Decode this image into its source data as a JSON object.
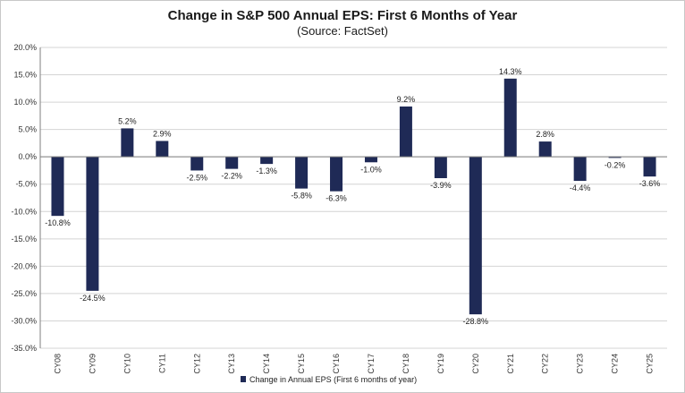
{
  "chart_data": {
    "type": "bar",
    "title": "Change in S&P 500 Annual EPS: First 6 Months of Year",
    "subtitle": "(Source: FactSet)",
    "categories": [
      "CY08",
      "CY09",
      "CY10",
      "CY11",
      "CY12",
      "CY13",
      "CY14",
      "CY15",
      "CY16",
      "CY17",
      "CY18",
      "CY19",
      "CY20",
      "CY21",
      "CY22",
      "CY23",
      "CY24",
      "CY25"
    ],
    "series": [
      {
        "name": "Change in Annual EPS (First 6 months of year)",
        "values": [
          -10.8,
          -24.5,
          5.2,
          2.9,
          -2.5,
          -2.2,
          -1.3,
          -5.8,
          -6.3,
          -1.0,
          9.2,
          -3.9,
          -28.8,
          14.3,
          2.8,
          -4.4,
          -0.2,
          -3.6
        ],
        "labels": [
          "-10.8%",
          "-24.5%",
          "5.2%",
          "2.9%",
          "-2.5%",
          "-2.2%",
          "-1.3%",
          "-5.8%",
          "-6.3%",
          "-1.0%",
          "9.2%",
          "-3.9%",
          "-28.8%",
          "14.3%",
          "2.8%",
          "-4.4%",
          "-0.2%",
          "-3.6%"
        ]
      }
    ],
    "yticks": [
      20,
      15,
      10,
      5,
      0,
      -5,
      -10,
      -15,
      -20,
      -25,
      -30,
      -35
    ],
    "ytick_labels": [
      "20.0%",
      "15.0%",
      "10.0%",
      "5.0%",
      "0.0%",
      "-5.0%",
      "-10.0%",
      "-15.0%",
      "-20.0%",
      "-25.0%",
      "-30.0%",
      "-35.0%"
    ],
    "ylim": [
      -35,
      20
    ],
    "xlabel": "",
    "ylabel": "",
    "grid": "horizontal",
    "legend_position": "bottom-center",
    "colors": {
      "bar": "#1f2a56",
      "grid": "#d4d4d4",
      "axis": "#7f7f7f"
    }
  }
}
